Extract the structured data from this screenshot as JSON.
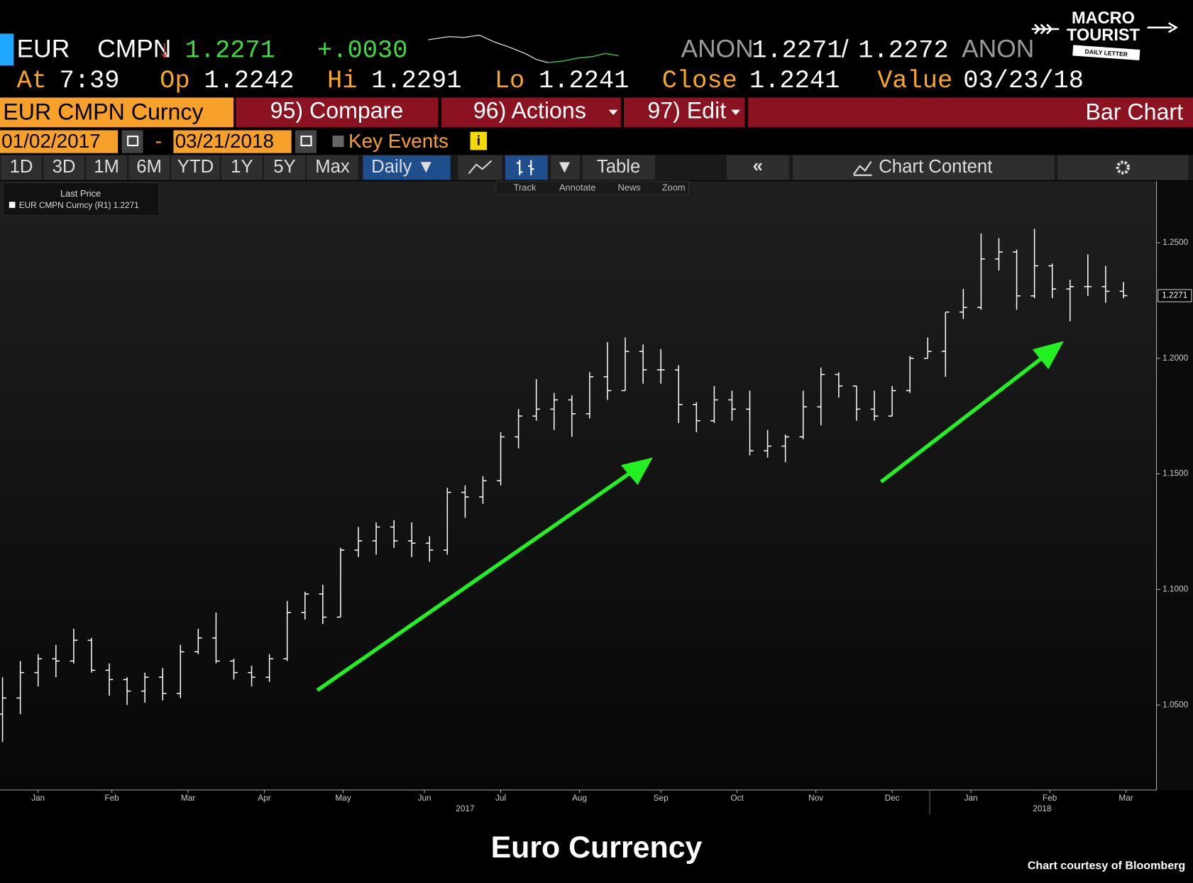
{
  "header": {
    "ticker": "EUR",
    "source": "CMPN",
    "direction": "↓",
    "price": "1.2271",
    "change": "+.0030",
    "bid_source": "ANON",
    "bid": "1.2271",
    "separator": "/",
    "ask": "1.2272",
    "ask_source": "ANON",
    "at_label": "At",
    "at": "7:39",
    "open_label": "Op",
    "open": "1.2242",
    "high_label": "Hi",
    "high": "1.2291",
    "low_label": "Lo",
    "low": "1.2241",
    "close_label": "Close",
    "close": "1.2241",
    "value_label": "Value",
    "value": "03/23/18"
  },
  "logo": {
    "line1": "MACRO",
    "line2": "TOURIST",
    "line3": "DAILY LETTER"
  },
  "toolbar": {
    "security": "EUR CMPN Curncy",
    "compare": "95) Compare",
    "actions": "96) Actions",
    "edit": "97) Edit",
    "view": "Bar Chart",
    "start_date": "01/02/2017",
    "date_separator": "-",
    "end_date": "03/21/2018",
    "key_events": "Key Events",
    "ranges": [
      "1D",
      "3D",
      "1M",
      "6M",
      "YTD",
      "1Y",
      "5Y",
      "Max"
    ],
    "frequency": "Daily ▼",
    "table": "Table",
    "chart_content": "Chart Content",
    "tools": [
      "Track",
      "Annotate",
      "News",
      "Zoom"
    ]
  },
  "footer": {
    "caption": "Euro Currency",
    "credit": "Chart courtesy of Bloomberg"
  },
  "chart_data": {
    "type": "ohlc",
    "legend_title": "Last Price",
    "series_name": "EUR CMPN Curncy (R1) 1.2271",
    "color": "#ffffff",
    "last_price": 1.2271,
    "grid": false,
    "x": [
      1,
      8,
      15,
      22,
      29,
      36,
      43,
      50,
      57,
      64,
      71,
      78,
      85,
      92,
      99,
      106,
      113,
      120,
      127,
      134,
      141,
      148,
      155,
      162,
      169,
      176,
      183,
      190,
      197,
      204,
      211,
      218,
      225,
      232,
      239,
      246,
      253,
      260,
      267,
      274,
      281,
      288,
      295,
      302,
      309,
      316,
      323,
      330,
      337,
      344,
      351,
      358,
      365,
      372,
      379,
      386,
      393,
      400,
      407,
      414,
      421,
      428,
      435,
      442
    ],
    "open": [
      1.046,
      1.053,
      1.064,
      1.07,
      1.069,
      1.078,
      1.065,
      1.061,
      1.056,
      1.062,
      1.055,
      1.073,
      1.079,
      1.069,
      1.064,
      1.062,
      1.07,
      1.09,
      1.098,
      1.088,
      1.117,
      1.121,
      1.127,
      1.121,
      1.12,
      1.117,
      1.142,
      1.14,
      1.147,
      1.166,
      1.175,
      1.178,
      1.182,
      1.176,
      1.192,
      1.186,
      1.203,
      1.195,
      1.195,
      1.18,
      1.173,
      1.182,
      1.178,
      1.16,
      1.162,
      1.166,
      1.179,
      1.193,
      1.188,
      1.178,
      1.175,
      1.186,
      1.2,
      1.203,
      1.22,
      1.222,
      1.243,
      1.246,
      1.227,
      1.24,
      1.23,
      1.231,
      1.231,
      1.229
    ],
    "high": [
      1.062,
      1.069,
      1.072,
      1.076,
      1.083,
      1.079,
      1.068,
      1.062,
      1.064,
      1.066,
      1.076,
      1.083,
      1.09,
      1.07,
      1.067,
      1.072,
      1.095,
      1.099,
      1.102,
      1.118,
      1.127,
      1.129,
      1.13,
      1.129,
      1.123,
      1.144,
      1.145,
      1.149,
      1.168,
      1.178,
      1.191,
      1.185,
      1.184,
      1.194,
      1.207,
      1.209,
      1.206,
      1.204,
      1.197,
      1.181,
      1.188,
      1.186,
      1.186,
      1.169,
      1.167,
      1.186,
      1.196,
      1.194,
      1.188,
      1.186,
      1.188,
      1.201,
      1.209,
      1.22,
      1.23,
      1.254,
      1.252,
      1.247,
      1.256,
      1.241,
      1.234,
      1.245,
      1.24,
      1.233
    ],
    "low": [
      1.034,
      1.046,
      1.058,
      1.062,
      1.068,
      1.064,
      1.054,
      1.05,
      1.051,
      1.052,
      1.053,
      1.072,
      1.068,
      1.061,
      1.058,
      1.06,
      1.069,
      1.087,
      1.085,
      1.088,
      1.114,
      1.115,
      1.118,
      1.114,
      1.112,
      1.115,
      1.131,
      1.137,
      1.145,
      1.161,
      1.173,
      1.169,
      1.166,
      1.174,
      1.182,
      1.186,
      1.189,
      1.189,
      1.172,
      1.168,
      1.172,
      1.173,
      1.158,
      1.157,
      1.155,
      1.165,
      1.171,
      1.183,
      1.173,
      1.173,
      1.175,
      1.185,
      1.2,
      1.192,
      1.217,
      1.221,
      1.238,
      1.221,
      1.226,
      1.226,
      1.216,
      1.227,
      1.224,
      1.226
    ],
    "close": [
      1.053,
      1.064,
      1.07,
      1.069,
      1.078,
      1.065,
      1.061,
      1.056,
      1.062,
      1.055,
      1.073,
      1.079,
      1.069,
      1.064,
      1.062,
      1.07,
      1.09,
      1.098,
      1.088,
      1.117,
      1.121,
      1.127,
      1.121,
      1.12,
      1.117,
      1.142,
      1.14,
      1.147,
      1.166,
      1.175,
      1.178,
      1.182,
      1.176,
      1.192,
      1.186,
      1.203,
      1.195,
      1.195,
      1.18,
      1.173,
      1.182,
      1.178,
      1.16,
      1.162,
      1.166,
      1.179,
      1.193,
      1.188,
      1.178,
      1.175,
      1.186,
      1.2,
      1.203,
      1.22,
      1.222,
      1.243,
      1.246,
      1.227,
      1.24,
      1.23,
      1.231,
      1.231,
      1.229,
      1.2271
    ],
    "xlim": [
      0,
      455
    ],
    "xticks": [
      {
        "value": 15,
        "label": "Jan"
      },
      {
        "value": 44,
        "label": "Feb"
      },
      {
        "value": 74,
        "label": "Mar"
      },
      {
        "value": 104,
        "label": "Apr"
      },
      {
        "value": 135,
        "label": "May"
      },
      {
        "value": 167,
        "label": "Jun"
      },
      {
        "value": 197,
        "label": "Jul"
      },
      {
        "value": 228,
        "label": "Aug"
      },
      {
        "value": 260,
        "label": "Sep"
      },
      {
        "value": 290,
        "label": "Oct"
      },
      {
        "value": 321,
        "label": "Nov"
      },
      {
        "value": 351,
        "label": "Dec"
      },
      {
        "value": 382,
        "label": "Jan"
      },
      {
        "value": 413,
        "label": "Feb"
      },
      {
        "value": 443,
        "label": "Mar"
      }
    ],
    "year_ticks": [
      {
        "value": 183,
        "label": "2017"
      },
      {
        "value": 410,
        "label": "2018"
      }
    ],
    "ylim": [
      1.0132,
      1.2766
    ],
    "yticks": [
      {
        "value": 1.05,
        "label": "1.0500"
      },
      {
        "value": 1.1,
        "label": "1.1000"
      },
      {
        "value": 1.15,
        "label": "1.1500"
      },
      {
        "value": 1.2,
        "label": "1.2000"
      },
      {
        "value": 1.25,
        "label": "1.2500"
      }
    ]
  }
}
